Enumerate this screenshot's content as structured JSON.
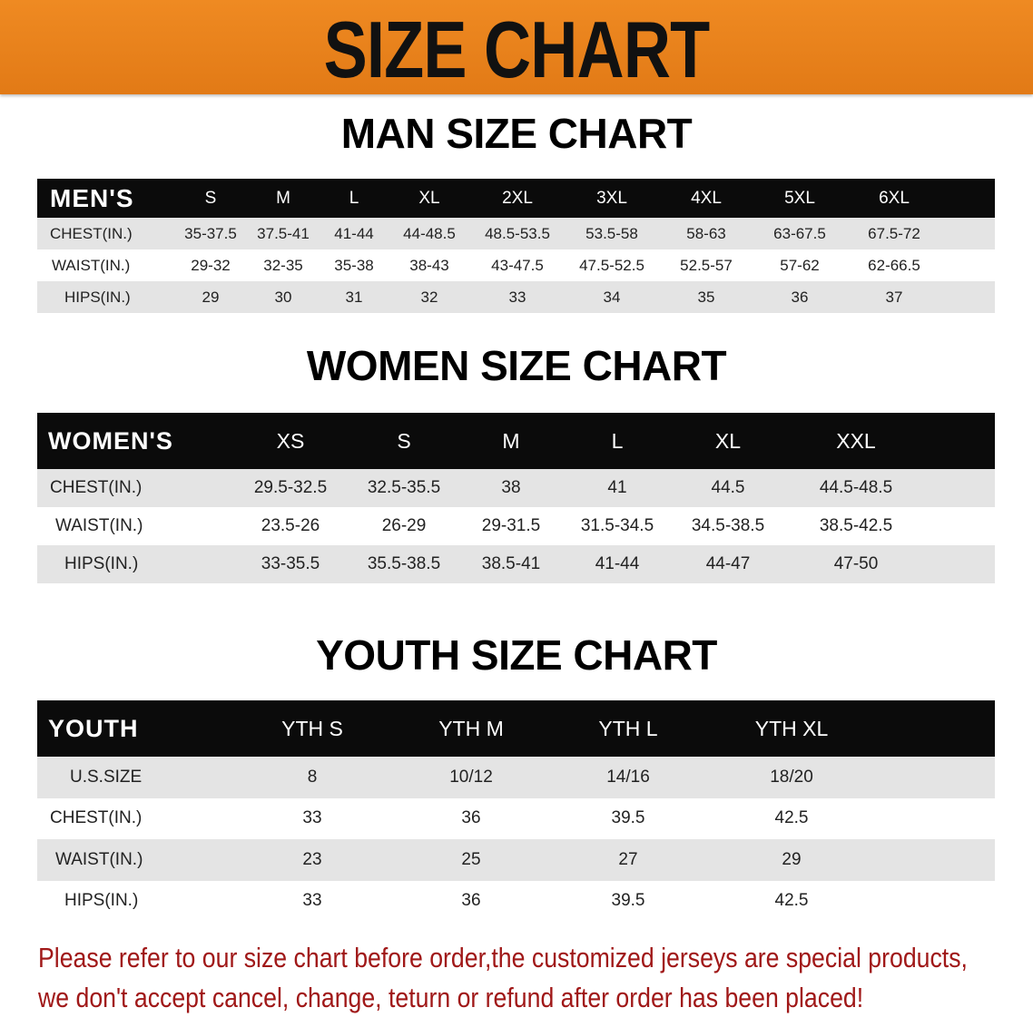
{
  "banner": {
    "title": "SIZE CHART",
    "color": "#e8801c"
  },
  "men": {
    "title": "MAN SIZE CHART",
    "header": [
      "MEN'S",
      "S",
      "M",
      "L",
      "XL",
      "2XL",
      "3XL",
      "4XL",
      "5XL",
      "6XL"
    ],
    "rows": [
      [
        "CHEST(IN.)",
        "35-37.5",
        "37.5-41",
        "41-44",
        "44-48.5",
        "48.5-53.5",
        "53.5-58",
        "58-63",
        "63-67.5",
        "67.5-72"
      ],
      [
        "WAIST(IN.)",
        "29-32",
        "32-35",
        "35-38",
        "38-43",
        "43-47.5",
        "47.5-52.5",
        "52.5-57",
        "57-62",
        "62-66.5"
      ],
      [
        "HIPS(IN.)",
        "29",
        "30",
        "31",
        "32",
        "33",
        "34",
        "35",
        "36",
        "37"
      ]
    ]
  },
  "women": {
    "title": "WOMEN SIZE CHART",
    "header": [
      "WOMEN'S",
      "XS",
      "S",
      "M",
      "L",
      "XL",
      "XXL"
    ],
    "rows": [
      [
        "CHEST(IN.)",
        "29.5-32.5",
        "32.5-35.5",
        "38",
        "41",
        "44.5",
        "44.5-48.5"
      ],
      [
        "WAIST(IN.)",
        "23.5-26",
        "26-29",
        "29-31.5",
        "31.5-34.5",
        "34.5-38.5",
        "38.5-42.5"
      ],
      [
        "HIPS(IN.)",
        "33-35.5",
        "35.5-38.5",
        "38.5-41",
        "41-44",
        "44-47",
        "47-50"
      ]
    ]
  },
  "youth": {
    "title": "YOUTH SIZE CHART",
    "header": [
      "YOUTH",
      "YTH S",
      "YTH M",
      "YTH L",
      "YTH XL"
    ],
    "rows": [
      [
        "U.S.SIZE",
        "8",
        "10/12",
        "14/16",
        "18/20"
      ],
      [
        "CHEST(IN.)",
        "33",
        "36",
        "39.5",
        "42.5"
      ],
      [
        "WAIST(IN.)",
        "23",
        "25",
        "27",
        "29"
      ],
      [
        "HIPS(IN.)",
        "33",
        "36",
        "39.5",
        "42.5"
      ]
    ]
  },
  "note": {
    "line1": "Please refer to our size chart before order,the customized jerseys are special products,",
    "line2": "we don't accept cancel, change, teturn or refund after order has been placed!",
    "color": "#a01818"
  }
}
